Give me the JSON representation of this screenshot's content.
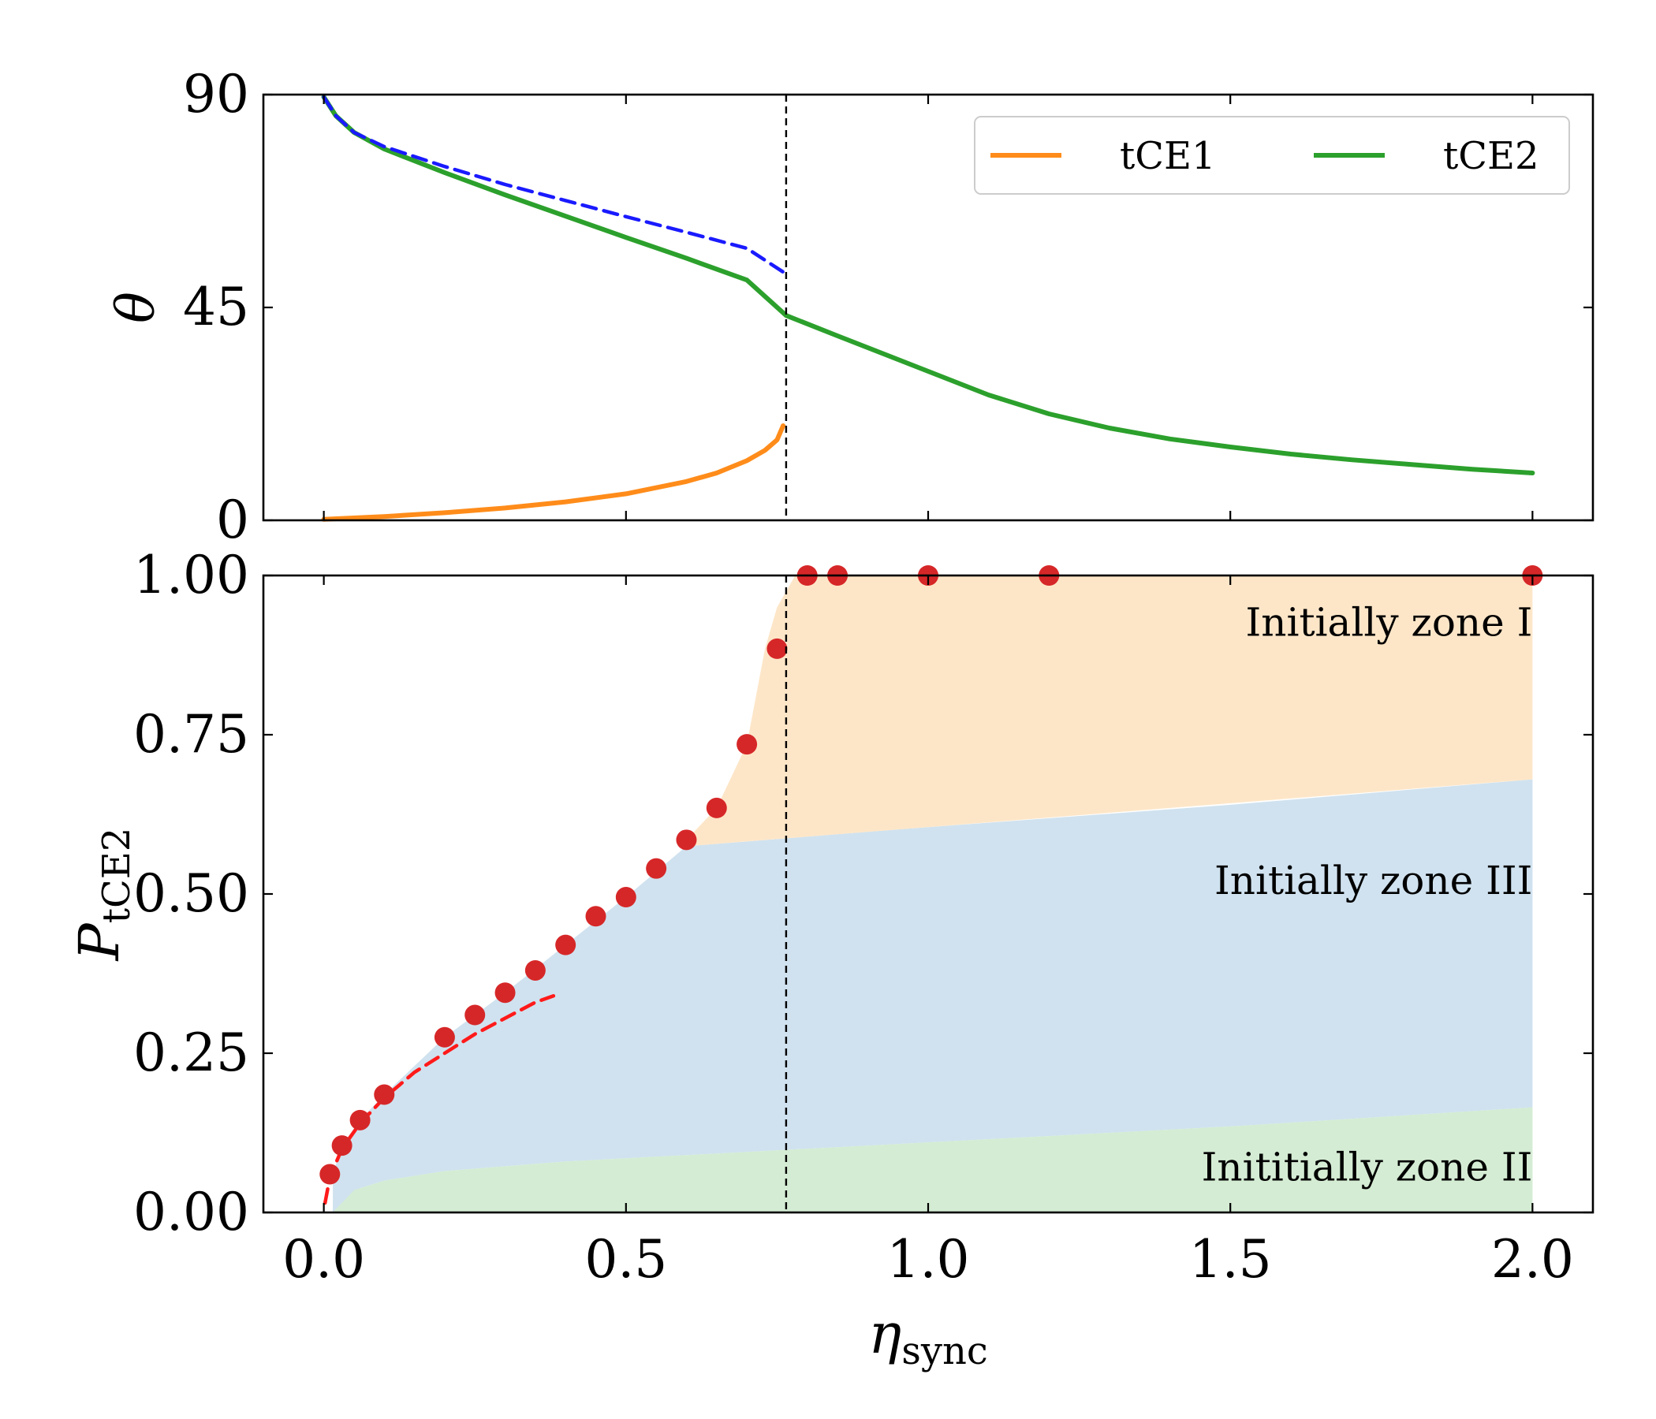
{
  "chart_data": [
    {
      "type": "line",
      "ylabel": "θ",
      "xlim": [
        -0.1,
        2.1
      ],
      "ylim": [
        0,
        90
      ],
      "yticks": [
        0,
        45,
        90
      ],
      "ytick_labels": [
        "0",
        "45",
        "90"
      ],
      "xticks": [
        0.0,
        0.5,
        1.0,
        1.5,
        2.0
      ],
      "legend": {
        "placement": "top-right",
        "columns": 2
      },
      "vline_x": 0.765,
      "series": [
        {
          "name": "tCE1",
          "color": "#ff8c1a",
          "x": [
            0.0,
            0.1,
            0.2,
            0.3,
            0.4,
            0.5,
            0.6,
            0.65,
            0.7,
            0.73,
            0.75,
            0.76
          ],
          "y": [
            0.2,
            0.8,
            1.6,
            2.6,
            3.9,
            5.6,
            8.2,
            10.0,
            12.6,
            14.8,
            17.0,
            20.0
          ]
        },
        {
          "name": "tCE2",
          "color": "#2ca02c",
          "x": [
            0.0,
            0.02,
            0.05,
            0.1,
            0.2,
            0.3,
            0.4,
            0.5,
            0.6,
            0.7,
            0.765,
            0.85,
            1.0,
            1.1,
            1.2,
            1.3,
            1.4,
            1.5,
            1.6,
            1.7,
            1.8,
            1.9,
            2.0
          ],
          "y": [
            89.5,
            85.5,
            82.0,
            78.5,
            73.5,
            68.8,
            64.3,
            59.8,
            55.4,
            50.8,
            43.3,
            39.0,
            31.5,
            26.5,
            22.5,
            19.5,
            17.2,
            15.5,
            14.0,
            12.8,
            11.8,
            10.8,
            10.0
          ]
        },
        {
          "name": "",
          "color": "#1a1aff",
          "style": "dashed",
          "x": [
            0.0,
            0.02,
            0.05,
            0.1,
            0.2,
            0.3,
            0.4,
            0.5,
            0.6,
            0.7,
            0.76
          ],
          "y": [
            89.5,
            85.5,
            82.0,
            79.0,
            74.8,
            71.0,
            67.6,
            64.2,
            60.9,
            57.5,
            52.5
          ]
        }
      ]
    },
    {
      "type": "scatter",
      "xlabel": "η_sync",
      "ylabel": "P_tCE2",
      "xlim": [
        -0.1,
        2.1
      ],
      "ylim": [
        0,
        1
      ],
      "xticks": [
        0.0,
        0.5,
        1.0,
        1.5,
        2.0
      ],
      "xtick_labels": [
        "0.0",
        "0.5",
        "1.0",
        "1.5",
        "2.0"
      ],
      "yticks": [
        0.0,
        0.25,
        0.5,
        0.75,
        1.0
      ],
      "ytick_labels": [
        "0.00",
        "0.25",
        "0.50",
        "0.75",
        "1.00"
      ],
      "vline_x": 0.765,
      "points": {
        "color": "#d62728",
        "x": [
          0.01,
          0.03,
          0.06,
          0.1,
          0.2,
          0.25,
          0.3,
          0.35,
          0.4,
          0.45,
          0.5,
          0.55,
          0.6,
          0.65,
          0.7,
          0.75,
          0.8,
          0.85,
          1.0,
          1.2,
          2.0
        ],
        "y": [
          0.06,
          0.105,
          0.145,
          0.185,
          0.275,
          0.31,
          0.345,
          0.38,
          0.42,
          0.465,
          0.495,
          0.54,
          0.585,
          0.635,
          0.735,
          0.885,
          1.0,
          1.0,
          1.0,
          1.0,
          1.0
        ]
      },
      "fit_curve": {
        "color": "#ff1a1a",
        "style": "dashed",
        "x": [
          0.002,
          0.01,
          0.03,
          0.06,
          0.1,
          0.15,
          0.2,
          0.25,
          0.3,
          0.35,
          0.38
        ],
        "y": [
          0.015,
          0.055,
          0.1,
          0.14,
          0.18,
          0.22,
          0.25,
          0.28,
          0.305,
          0.33,
          0.34
        ]
      },
      "regions": [
        {
          "label": "Initially zone I",
          "color": "#fde6c8",
          "x": [
            0.6,
            0.65,
            0.7,
            0.73,
            0.75,
            0.78,
            0.8,
            2.0
          ],
          "y_top": [
            0.585,
            0.635,
            0.735,
            0.885,
            0.95,
            1.0,
            1.0,
            1.0
          ]
        },
        {
          "label": "Initially zone III",
          "color": "#d0e2ef",
          "x": [
            0.015,
            0.03,
            0.06,
            0.1,
            0.2,
            0.3,
            0.4,
            0.5,
            0.6,
            0.8,
            1.0,
            1.5,
            2.0
          ],
          "y_top": [
            0.06,
            0.105,
            0.145,
            0.185,
            0.275,
            0.345,
            0.42,
            0.495,
            0.575,
            0.59,
            0.605,
            0.64,
            0.68
          ]
        },
        {
          "label": "Inititially zone II",
          "color": "#d4ecd3",
          "x": [
            0.015,
            0.05,
            0.1,
            0.2,
            0.4,
            0.6,
            0.8,
            1.0,
            1.5,
            2.0
          ],
          "y_top": [
            0.0,
            0.035,
            0.05,
            0.065,
            0.08,
            0.09,
            0.1,
            0.11,
            0.135,
            0.165
          ]
        }
      ]
    }
  ]
}
